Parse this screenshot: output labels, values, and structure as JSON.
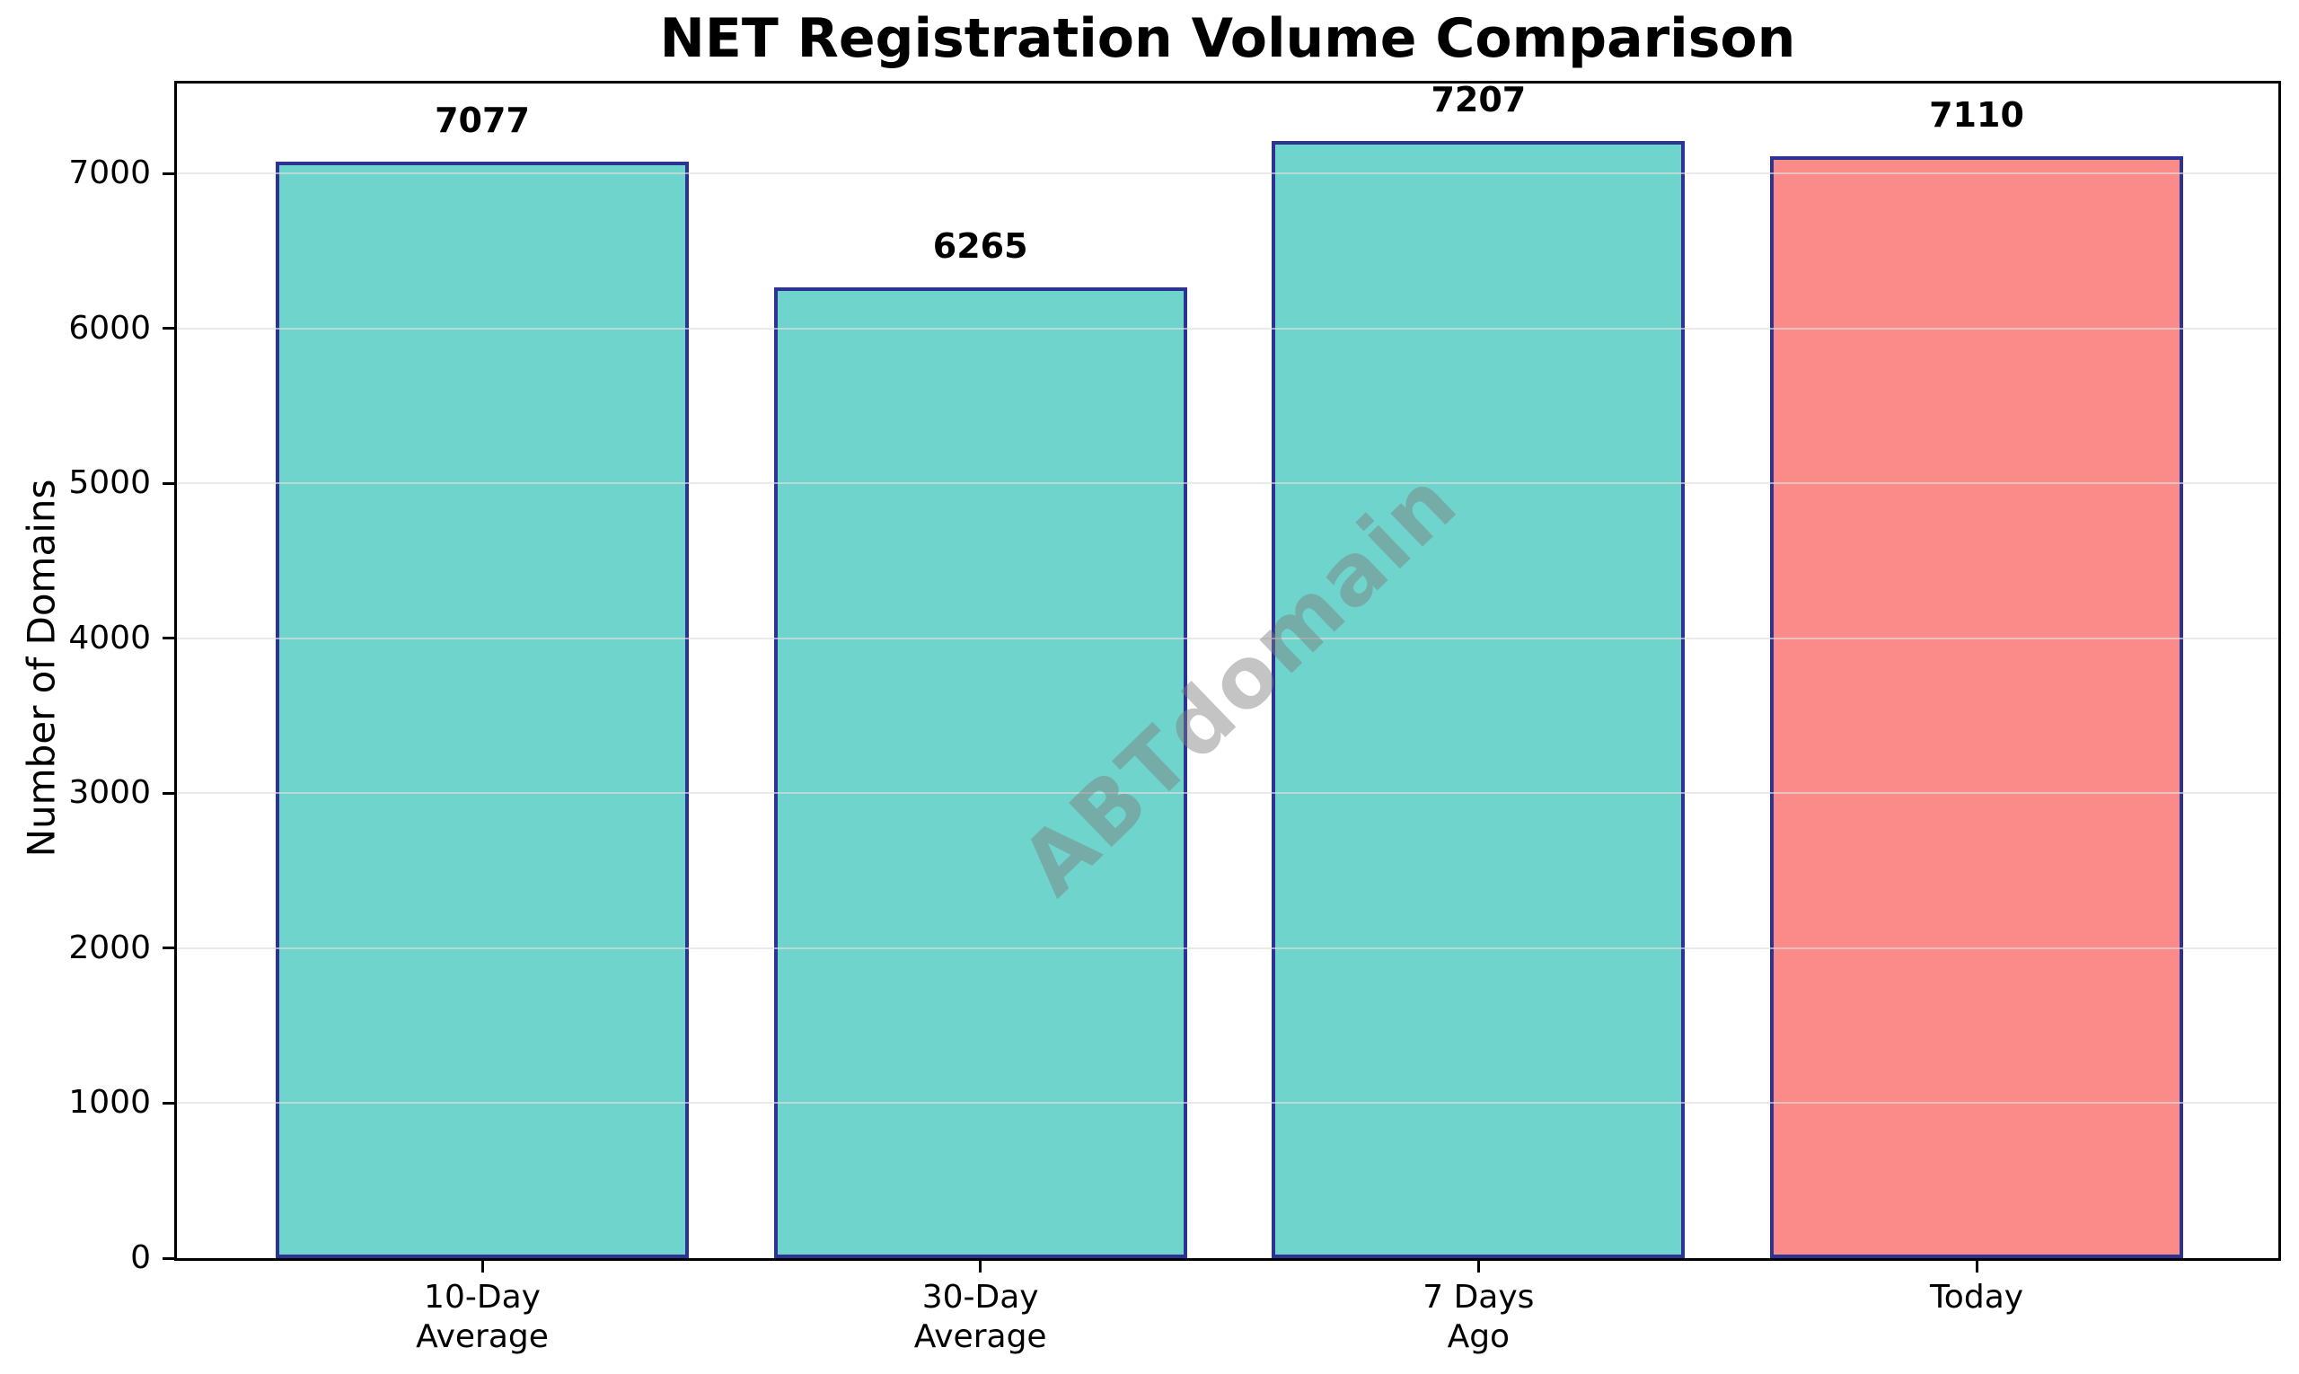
{
  "chart_data": {
    "type": "bar",
    "title": "NET Registration Volume Comparison",
    "xlabel": "",
    "ylabel": "Number of Domains",
    "categories": [
      "10-Day\nAverage",
      "30-Day\nAverage",
      "7 Days\nAgo",
      "Today"
    ],
    "values": [
      7077,
      6265,
      7207,
      7110
    ],
    "value_labels": [
      "7077",
      "6265",
      "7207",
      "7110"
    ],
    "bar_colors": [
      "#6FD4CC",
      "#6FD4CC",
      "#6FD4CC",
      "#FB8B88"
    ],
    "bar_edge_color": "#2C3392",
    "ylim": [
      0,
      7580
    ],
    "yticks": [
      0,
      1000,
      2000,
      3000,
      4000,
      5000,
      6000,
      7000
    ],
    "grid": true,
    "gridline_color": "#DEDEDE",
    "legend": "none",
    "watermark": "ABTdomain"
  }
}
